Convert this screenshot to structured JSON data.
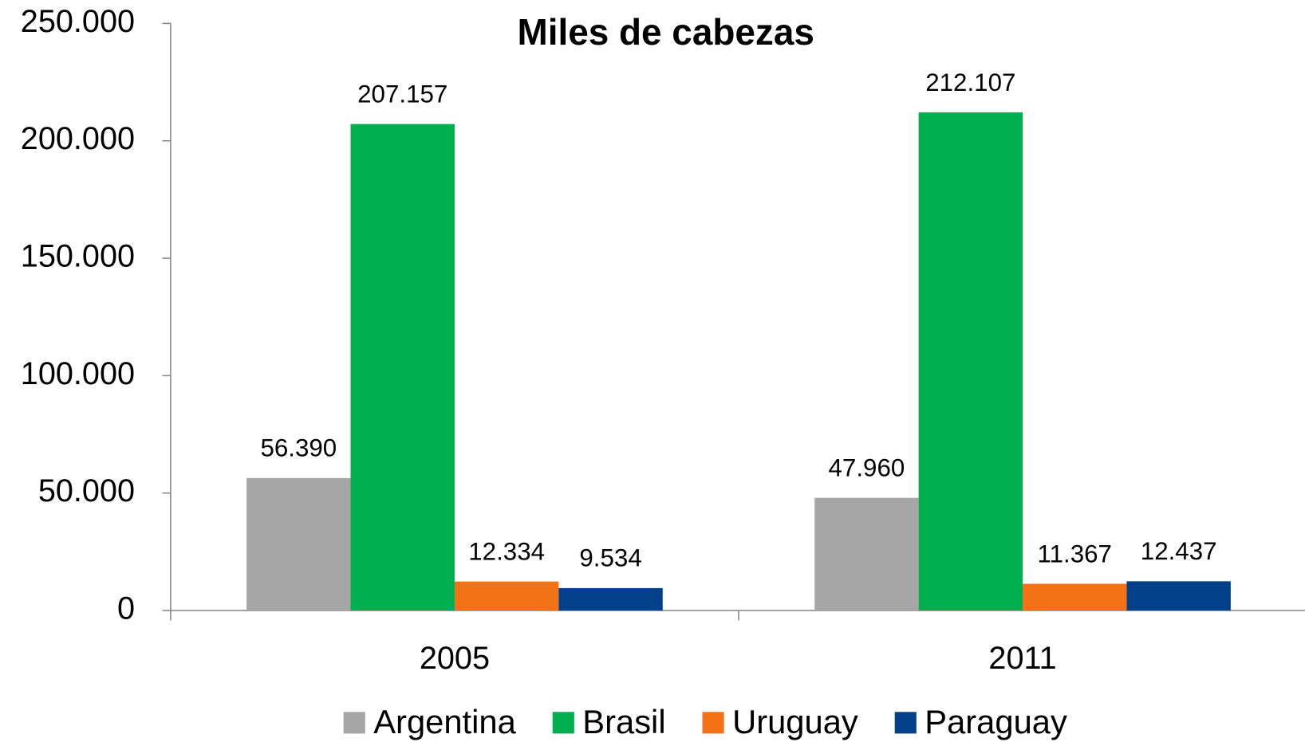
{
  "chart_data": {
    "type": "bar",
    "title": "Miles de cabezas",
    "categories": [
      "2005",
      "2011"
    ],
    "series": [
      {
        "name": "Argentina",
        "color": "#a6a6a6",
        "values": [
          56390,
          47960
        ],
        "value_labels": [
          "56.390",
          "47.960"
        ]
      },
      {
        "name": "Brasil",
        "color": "#00b050",
        "values": [
          207157,
          212107
        ],
        "value_labels": [
          "207.157",
          "212.107"
        ]
      },
      {
        "name": "Uruguay",
        "color": "#f47216",
        "values": [
          12334,
          11367
        ],
        "value_labels": [
          "12.334",
          "11.367"
        ]
      },
      {
        "name": "Paraguay",
        "color": "#02418a",
        "values": [
          9534,
          12437
        ],
        "value_labels": [
          "9.534",
          "12.437"
        ]
      }
    ],
    "ylim": [
      0,
      250000
    ],
    "yticks": [
      0,
      {
        "value": 50000,
        "label": "50.000"
      },
      {
        "value": 100000,
        "label": "100.000"
      },
      {
        "value": 150000,
        "label": "150.000"
      },
      {
        "value": 200000,
        "label": "200.000"
      },
      {
        "value": 250000,
        "label": "250.000"
      }
    ],
    "grid": false,
    "legend": "bottom"
  }
}
